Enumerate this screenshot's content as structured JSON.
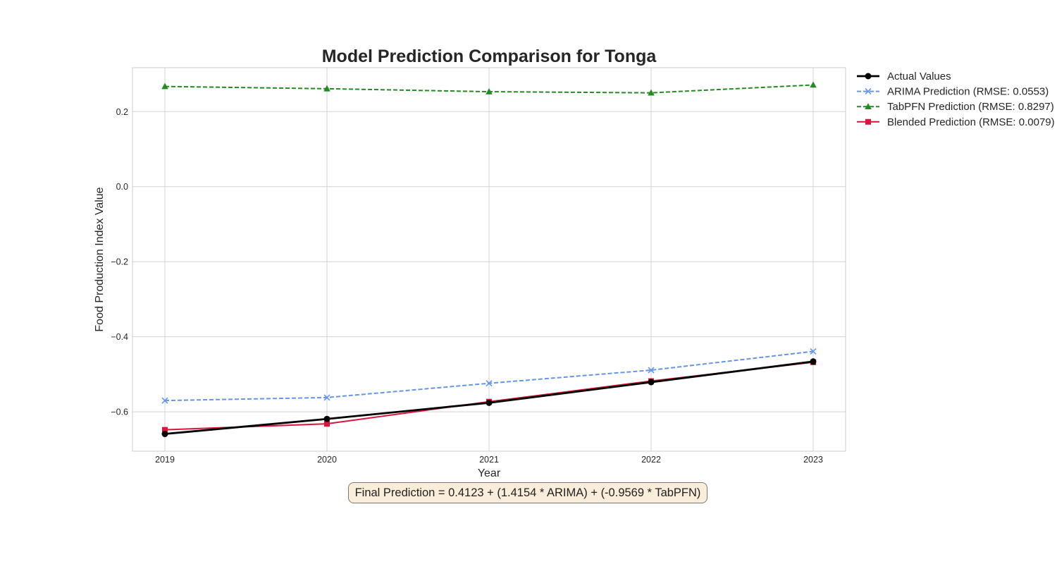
{
  "chart_data": {
    "type": "line",
    "title": "Model Prediction Comparison for Tonga",
    "xlabel": "Year",
    "ylabel": "Food Production Index Value",
    "x": [
      "2019",
      "2020",
      "2021",
      "2022",
      "2023"
    ],
    "xlim": [
      2018.8,
      2023.2
    ],
    "ylim": [
      -0.705,
      0.317
    ],
    "yticks": [
      0.2,
      0.0,
      -0.2,
      -0.4,
      -0.6
    ],
    "ytick_labels": [
      "0.2",
      "0.0",
      "−0.2",
      "−0.4",
      "−0.6"
    ],
    "grid": true,
    "legend_position": "outside-top-right",
    "series": [
      {
        "name": "Actual Values",
        "color": "#000000",
        "linestyle": "solid",
        "marker": "circle",
        "values": [
          -0.659,
          -0.619,
          -0.576,
          -0.521,
          -0.466
        ]
      },
      {
        "name": "ARIMA Prediction (RMSE: 0.0553)",
        "color": "#6495ed",
        "linestyle": "dashed",
        "marker": "x",
        "values": [
          -0.57,
          -0.562,
          -0.524,
          -0.489,
          -0.439
        ]
      },
      {
        "name": "TabPFN Prediction (RMSE: 0.8297)",
        "color": "#228b22",
        "linestyle": "dashed",
        "marker": "triangle",
        "values": [
          0.267,
          0.261,
          0.253,
          0.25,
          0.271
        ]
      },
      {
        "name": "Blended Prediction (RMSE: 0.0079)",
        "color": "#dc143c",
        "linestyle": "solid",
        "marker": "square",
        "values": [
          -0.648,
          -0.632,
          -0.573,
          -0.518,
          -0.468
        ]
      }
    ],
    "annotation": "Final Prediction = 0.4123 + (1.4154 * ARIMA) + (-0.9569 * TabPFN)"
  }
}
